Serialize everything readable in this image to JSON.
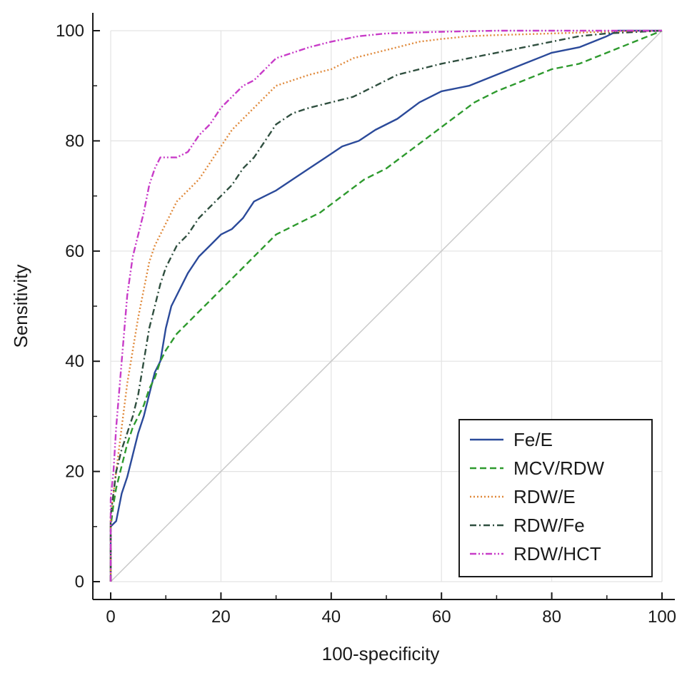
{
  "chart_data": {
    "type": "line",
    "xlabel": "100-specificity",
    "ylabel": "Sensitivity",
    "xlim": [
      0,
      100
    ],
    "ylim": [
      0,
      100
    ],
    "xticks": [
      0,
      20,
      40,
      60,
      80,
      100
    ],
    "yticks": [
      0,
      20,
      40,
      60,
      80,
      100
    ],
    "grid": true,
    "legend_position": "bottom-right",
    "reference_line": {
      "x": [
        0,
        100
      ],
      "y": [
        0,
        100
      ],
      "color": "#c8c8c8"
    },
    "series": [
      {
        "name": "Fe/E",
        "color": "#2b4a9a",
        "dash": "solid",
        "x": [
          0,
          0,
          0.5,
          1,
          2,
          3,
          4,
          5,
          6,
          7,
          8,
          9,
          10,
          11,
          12,
          14,
          16,
          18,
          20,
          22,
          24,
          26,
          28,
          30,
          33,
          36,
          39,
          42,
          45,
          48,
          52,
          56,
          60,
          65,
          70,
          75,
          80,
          85,
          90,
          92,
          95,
          100
        ],
        "y": [
          0,
          10,
          10.5,
          11,
          16,
          19,
          23,
          27,
          30,
          34,
          38,
          40,
          46,
          50,
          52,
          56,
          59,
          61,
          63,
          64,
          66,
          69,
          70,
          71,
          73,
          75,
          77,
          79,
          80,
          82,
          84,
          87,
          89,
          90,
          92,
          94,
          96,
          97,
          99,
          100,
          100,
          100
        ]
      },
      {
        "name": "MCV/RDW",
        "color": "#2e9a2e",
        "dash": "dashed",
        "x": [
          0,
          0,
          0.5,
          1,
          2,
          3,
          4,
          5,
          6,
          7,
          8,
          9,
          10,
          12,
          14,
          16,
          18,
          20,
          23,
          26,
          30,
          34,
          38,
          42,
          46,
          50,
          54,
          58,
          62,
          66,
          70,
          75,
          80,
          85,
          90,
          95,
          100
        ],
        "y": [
          0,
          10,
          14,
          17,
          21,
          25,
          28,
          30,
          32,
          35,
          37,
          40,
          42,
          45,
          47,
          49,
          51,
          53,
          56,
          59,
          63,
          65,
          67,
          70,
          73,
          75,
          78,
          81,
          84,
          87,
          89,
          91,
          93,
          94,
          96,
          98,
          100
        ]
      },
      {
        "name": "RDW/E",
        "color": "#e08a3c",
        "dash": "dotted",
        "x": [
          0,
          0,
          0.5,
          1,
          2,
          3,
          4,
          5,
          6,
          7,
          8,
          10,
          12,
          14,
          16,
          18,
          20,
          22,
          24,
          26,
          28,
          30,
          33,
          36,
          40,
          44,
          48,
          52,
          56,
          60,
          65,
          70,
          80,
          90,
          100
        ],
        "y": [
          0,
          12,
          16,
          20,
          28,
          36,
          42,
          48,
          53,
          58,
          61,
          65,
          69,
          71,
          73,
          76,
          79,
          82,
          84,
          86,
          88,
          90,
          91,
          92,
          93,
          95,
          96,
          97,
          98,
          98.5,
          99,
          99.2,
          99.5,
          99.8,
          100
        ]
      },
      {
        "name": "RDW/Fe",
        "color": "#2f4f3f",
        "dash": "dashdot",
        "x": [
          0,
          0,
          0.5,
          1,
          2,
          3,
          4,
          5,
          6,
          7,
          8,
          9,
          10,
          12,
          14,
          16,
          18,
          20,
          22,
          24,
          26,
          28,
          30,
          33,
          36,
          40,
          44,
          48,
          52,
          56,
          60,
          65,
          70,
          75,
          80,
          85,
          90,
          100
        ],
        "y": [
          0,
          12,
          16,
          20,
          24,
          27,
          30,
          34,
          40,
          46,
          50,
          54,
          57,
          61,
          63,
          66,
          68,
          70,
          72,
          75,
          77,
          80,
          83,
          85,
          86,
          87,
          88,
          90,
          92,
          93,
          94,
          95,
          96,
          97,
          98,
          99,
          99.5,
          100
        ]
      },
      {
        "name": "RDW/HCT",
        "color": "#c83cc8",
        "dash": "dashdotdot",
        "x": [
          0,
          0,
          0.5,
          1,
          2,
          3,
          4,
          5,
          6,
          7,
          8,
          9,
          10,
          12,
          14,
          16,
          18,
          20,
          22,
          24,
          26,
          28,
          30,
          33,
          36,
          40,
          45,
          50,
          60,
          70,
          80,
          100
        ],
        "y": [
          0,
          15,
          20,
          28,
          40,
          52,
          59,
          63,
          67,
          72,
          75,
          77,
          77,
          77,
          78,
          81,
          83,
          86,
          88,
          90,
          91,
          93,
          95,
          96,
          97,
          98,
          99,
          99.5,
          99.8,
          100,
          100,
          100
        ]
      }
    ]
  }
}
